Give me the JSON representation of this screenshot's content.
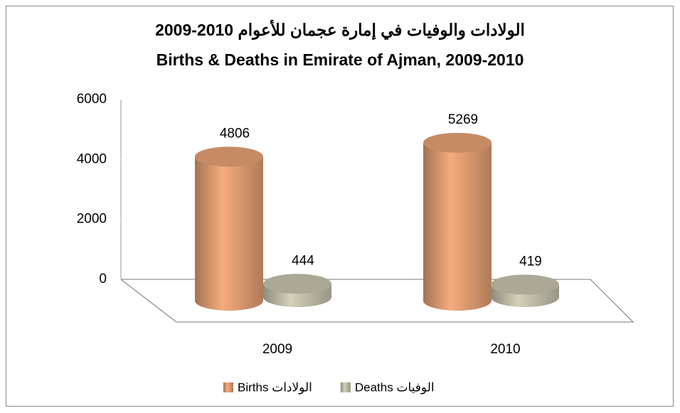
{
  "chart_data": {
    "type": "cylinder_bar",
    "title": "الولادات والوفيات في إمارة عجمان للأعوام 2010-2009",
    "subtitle": "Births & Deaths  in Emirate of Ajman, 2009-2010",
    "categories": [
      "2009",
      "2010"
    ],
    "series": [
      {
        "name": "Births الولادات",
        "color": "#e9a477",
        "values": [
          4806,
          5269
        ]
      },
      {
        "name": "Deaths الوفيات",
        "color": "#c9c7b0",
        "values": [
          444,
          419
        ]
      }
    ],
    "ylim": [
      0,
      6000
    ],
    "yticks": [
      0,
      2000,
      4000,
      6000
    ],
    "legend": "bottom"
  }
}
